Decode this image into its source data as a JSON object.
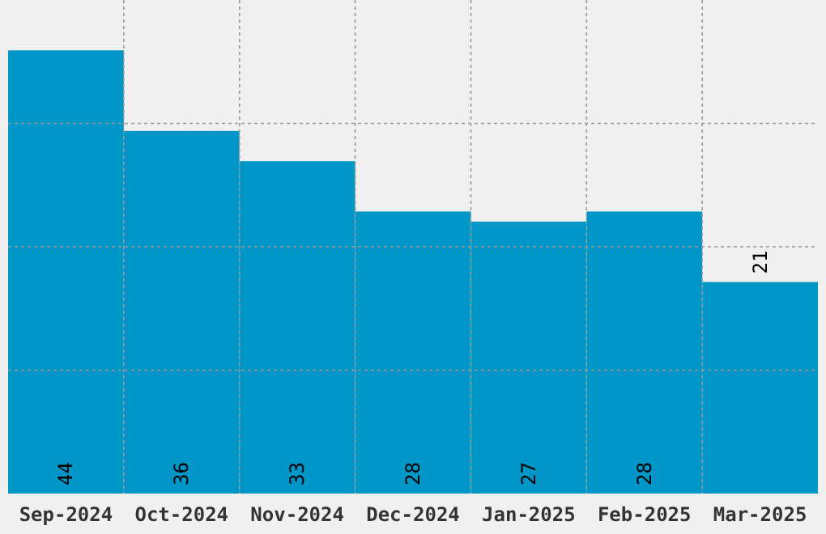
{
  "chart_data": {
    "type": "bar",
    "categories": [
      "Sep-2024",
      "Oct-2024",
      "Nov-2024",
      "Dec-2024",
      "Jan-2025",
      "Feb-2025",
      "Mar-2025"
    ],
    "values": [
      44,
      36,
      33,
      28,
      27,
      28,
      21
    ],
    "color": "#0097c8",
    "ylim": [
      0,
      49
    ],
    "yticks": [
      {
        "value": 12.25,
        "label": null
      },
      {
        "value": 24.5,
        "label": null
      },
      {
        "value": 36.75,
        "label": null
      }
    ],
    "grid": true,
    "data_labels": true,
    "tick_labels": "x"
  }
}
